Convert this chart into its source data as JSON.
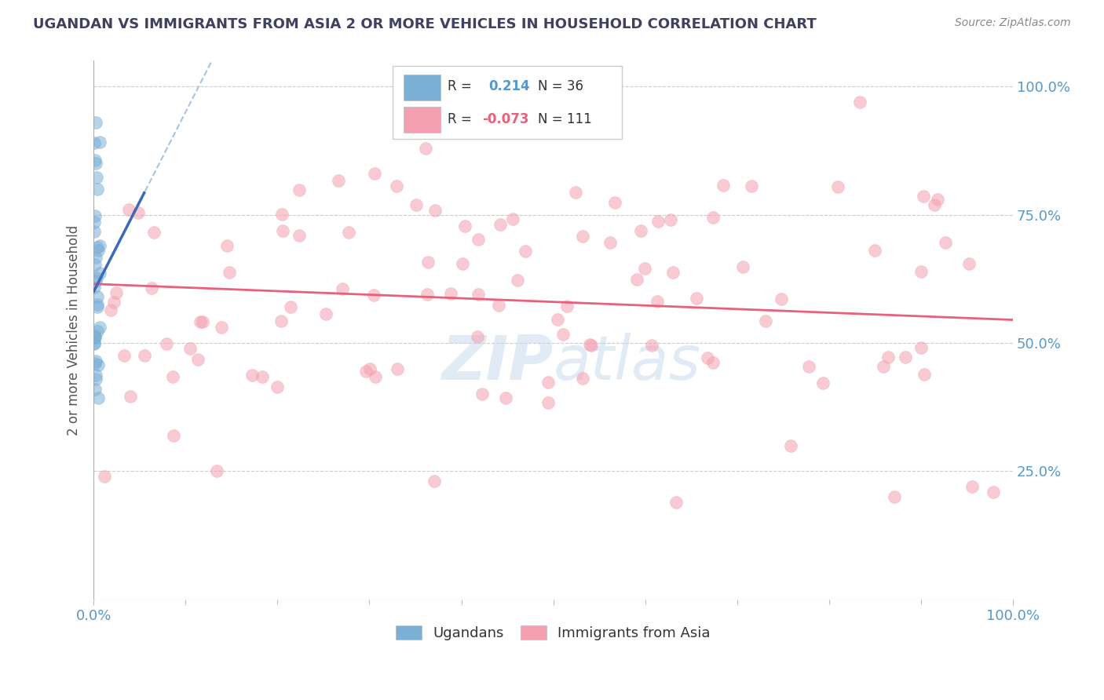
{
  "title": "UGANDAN VS IMMIGRANTS FROM ASIA 2 OR MORE VEHICLES IN HOUSEHOLD CORRELATION CHART",
  "source": "Source: ZipAtlas.com",
  "ylabel": "2 or more Vehicles in Household",
  "legend_labels": [
    "Ugandans",
    "Immigrants from Asia"
  ],
  "r_ugandan": 0.214,
  "n_ugandan": 36,
  "r_asian": -0.073,
  "n_asian": 111,
  "ugandan_color": "#7BAFD4",
  "asian_color": "#F4A0B0",
  "trend_ugandan_color": "#3B6BB5",
  "trend_asian_color": "#E8607A",
  "trend_ugandan_dashed_color": "#A8C4E0",
  "background_color": "#FFFFFF",
  "grid_color": "#CCCCCC",
  "watermark_color": "#C5D8EE",
  "title_color": "#404060",
  "axis_label_color": "#5599CC",
  "text_color": "#333333"
}
